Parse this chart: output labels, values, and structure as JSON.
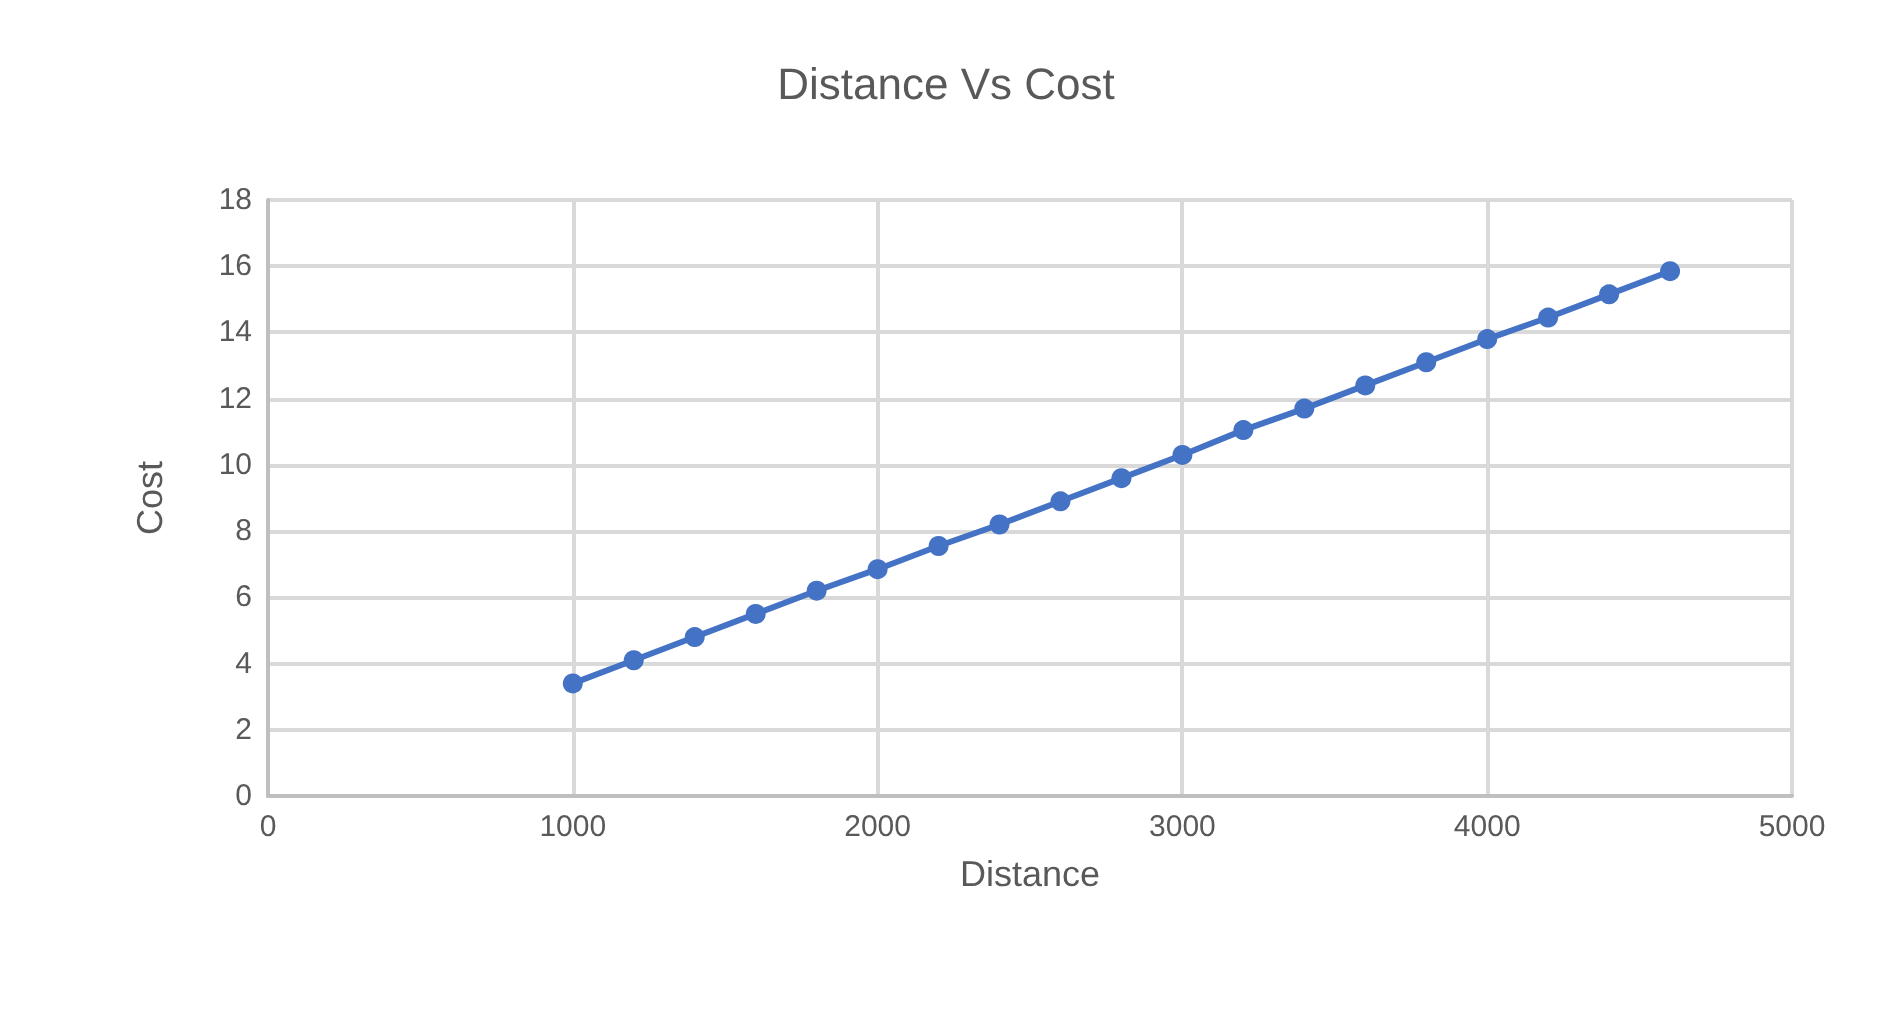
{
  "chart_data": {
    "type": "line",
    "title": "Distance Vs Cost",
    "xlabel": "Distance",
    "ylabel": "Cost",
    "x": [
      1000,
      1200,
      1400,
      1600,
      1800,
      2000,
      2200,
      2400,
      2600,
      2800,
      3000,
      3200,
      3400,
      3600,
      3800,
      4000,
      4200,
      4400,
      4600
    ],
    "series": [
      {
        "color": "#4472c4",
        "values": [
          3.4,
          4.1,
          4.8,
          5.5,
          6.2,
          6.85,
          7.55,
          8.2,
          8.9,
          9.6,
          10.3,
          11.05,
          11.7,
          12.4,
          13.1,
          13.8,
          14.45,
          15.15,
          15.85
        ]
      }
    ],
    "xlim": [
      0,
      5000
    ],
    "xticks": [
      0,
      1000,
      2000,
      3000,
      4000,
      5000
    ],
    "ylim": [
      0,
      18
    ],
    "yticks": [
      0,
      2,
      4,
      6,
      8,
      10,
      12,
      14,
      16,
      18
    ],
    "grid": true,
    "marker": "circle",
    "line_style": "solid"
  }
}
